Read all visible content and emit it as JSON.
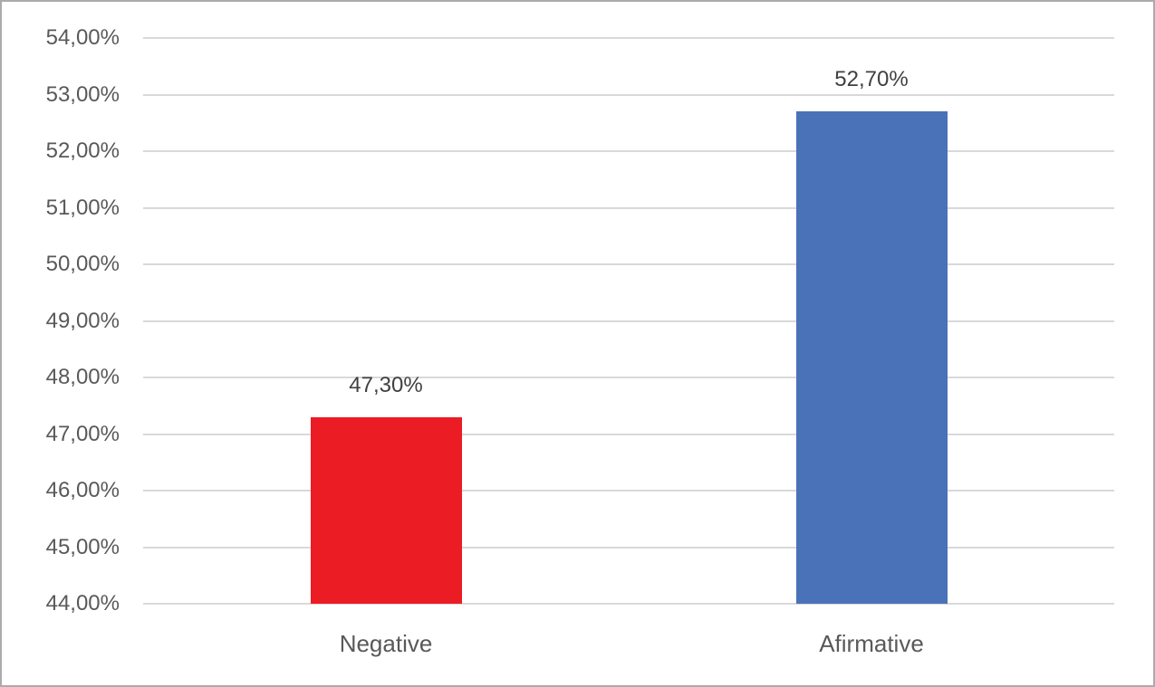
{
  "chart_data": {
    "type": "bar",
    "title": "",
    "xlabel": "",
    "ylabel": "",
    "categories": [
      "Negative",
      "Afirmative"
    ],
    "values": [
      47.3,
      52.7
    ],
    "data_labels": [
      "47,30%",
      "52,70%"
    ],
    "bar_colors": [
      "#EC1C25",
      "#4A72B8"
    ],
    "ylim": [
      44,
      54
    ],
    "ytick_step": 1,
    "yticks": [
      {
        "value": 54,
        "label": "54,00%"
      },
      {
        "value": 53,
        "label": "53,00%"
      },
      {
        "value": 52,
        "label": "52,00%"
      },
      {
        "value": 51,
        "label": "51,00%"
      },
      {
        "value": 50,
        "label": "50,00%"
      },
      {
        "value": 49,
        "label": "49,00%"
      },
      {
        "value": 48,
        "label": "48,00%"
      },
      {
        "value": 47,
        "label": "47,00%"
      },
      {
        "value": 46,
        "label": "46,00%"
      },
      {
        "value": 45,
        "label": "45,00%"
      },
      {
        "value": 44,
        "label": "44,00%"
      }
    ],
    "grid": true,
    "legend": "none",
    "colors": {
      "gridline": "#D9D9D9",
      "axis_text": "#595959",
      "data_label_text": "#404040",
      "category_text": "#595959",
      "border": "#ABABAB",
      "background": "#FFFFFF"
    }
  }
}
